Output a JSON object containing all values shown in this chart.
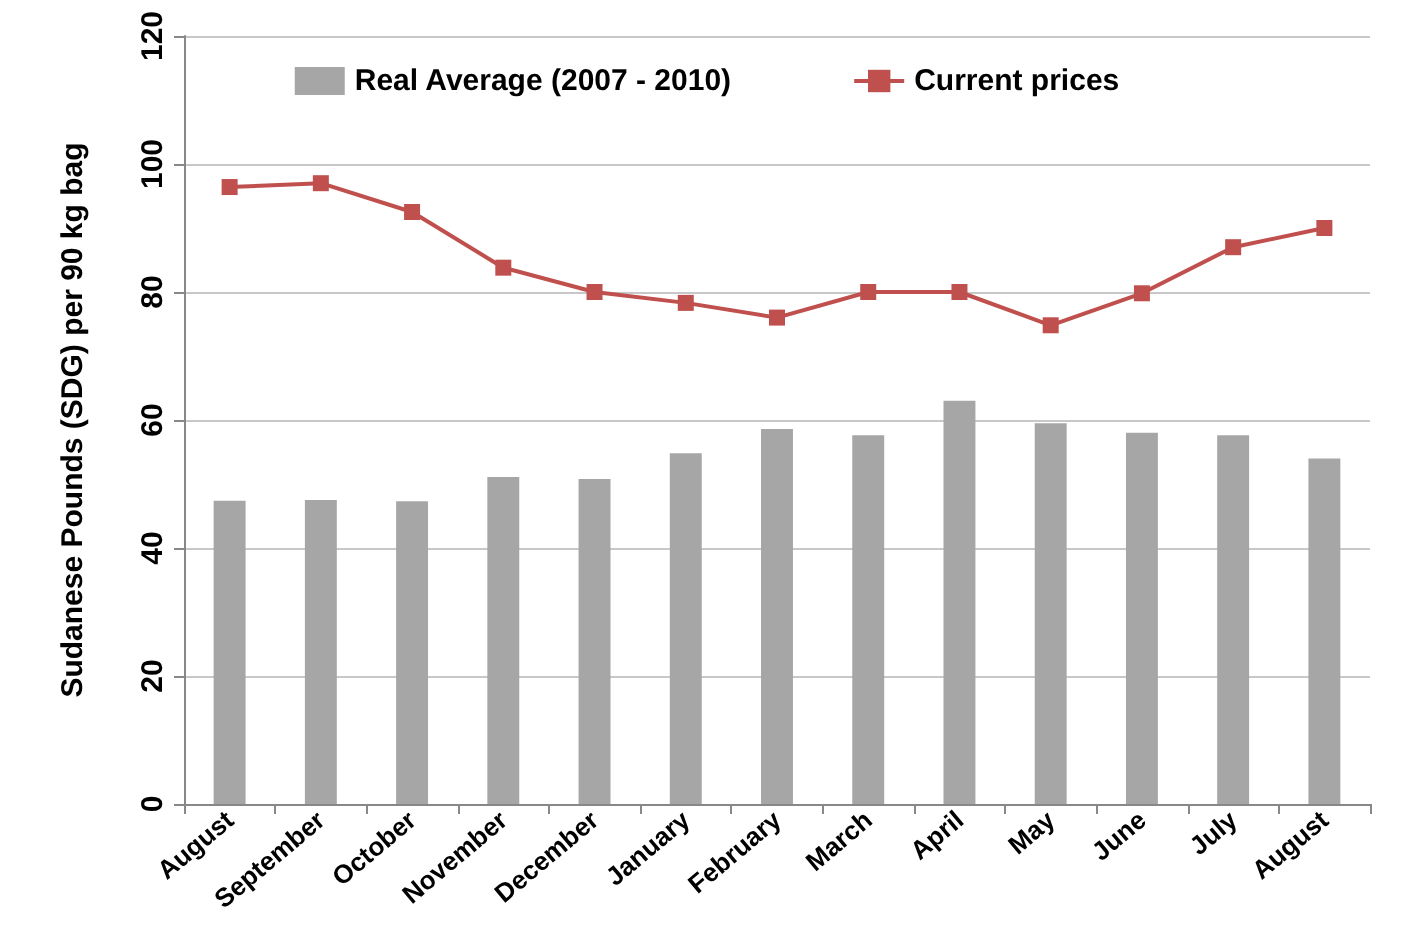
{
  "chart_data": {
    "type": "bar",
    "ylabel": "Sudanese Pounds (SDG) per 90 kg bag",
    "categories": [
      "August",
      "September",
      "October",
      "November",
      "December",
      "January",
      "February",
      "March",
      "April",
      "May",
      "June",
      "July",
      "August"
    ],
    "series": [
      {
        "name": "Real Average (2007 - 2010)",
        "color": "#a6a6a6",
        "values": [
          47.4,
          47.5,
          47.3,
          51.1,
          50.8,
          54.8,
          58.6,
          57.6,
          63,
          59.5,
          58,
          57.6,
          54
        ]
      },
      {
        "name": "Current prices",
        "type": "line",
        "color": "#c0504d",
        "marker": "square",
        "values": [
          96.4,
          97,
          92.5,
          83.8,
          80,
          78.3,
          76,
          80,
          80,
          74.8,
          79.8,
          87,
          90
        ]
      }
    ],
    "ylim": [
      0,
      120
    ],
    "yticks": [
      0,
      20,
      40,
      60,
      80,
      100,
      120
    ],
    "grid": "y",
    "legend": "top"
  }
}
